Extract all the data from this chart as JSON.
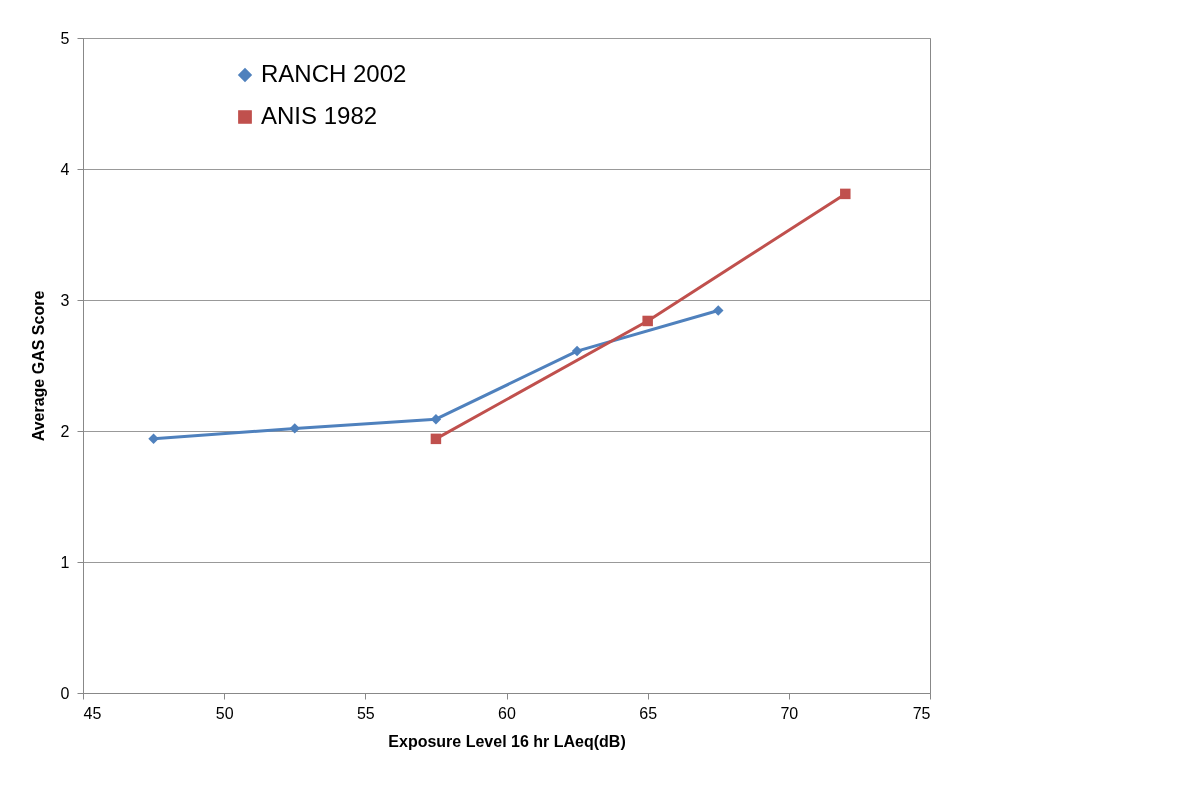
{
  "chart_data": {
    "type": "line",
    "xlabel": "Exposure Level 16 hr  LAeq(dB)",
    "ylabel": "Average GAS Score",
    "series": [
      {
        "name": "RANCH 2002",
        "color": "#4f81bd",
        "marker": "diamond",
        "x": [
          47.5,
          52.5,
          57.5,
          62.5,
          67.5
        ],
        "values": [
          1.94,
          2.02,
          2.09,
          2.61,
          2.92
        ]
      },
      {
        "name": "ANIS 1982",
        "color": "#c0504d",
        "marker": "square",
        "x": [
          57.5,
          65,
          72
        ],
        "values": [
          1.94,
          2.84,
          3.81
        ]
      }
    ],
    "xlim": [
      45,
      75
    ],
    "xticks": [
      45,
      50,
      55,
      60,
      65,
      70,
      75
    ],
    "ylim": [
      0,
      5
    ],
    "yticks": [
      0,
      1,
      2,
      3,
      4,
      5
    ],
    "grid": "y",
    "legend": "top left"
  }
}
